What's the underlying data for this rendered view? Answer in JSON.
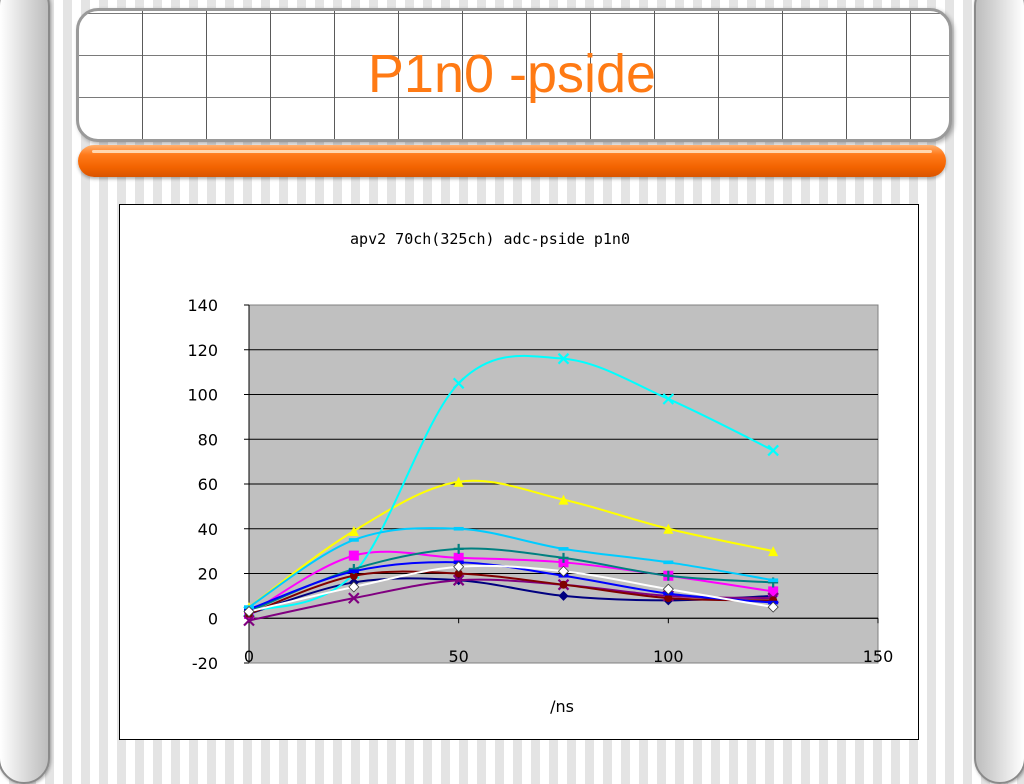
{
  "slide": {
    "title": "P1n0 -pside"
  },
  "colors": {
    "title": "#ff7a14",
    "plot_background": "#c0c0c0"
  },
  "chart_data": {
    "type": "line",
    "title": "apv2 70ch(325ch) adc-pside p1n0",
    "xlabel": "/ns",
    "ylabel": "",
    "xlim": [
      0,
      150
    ],
    "ylim": [
      -20,
      140
    ],
    "xticks": [
      0,
      50,
      100,
      150
    ],
    "yticks": [
      -20,
      0,
      20,
      40,
      60,
      80,
      100,
      120,
      140
    ],
    "grid": "horizontal",
    "smoothed": true,
    "legend": "none",
    "x": [
      0,
      25,
      50,
      75,
      100,
      125
    ],
    "series": [
      {
        "color": "#000080",
        "marker": "diamond",
        "values": [
          2,
          16,
          17,
          10,
          8,
          10
        ]
      },
      {
        "color": "#ff00ff",
        "marker": "square",
        "values": [
          2,
          28,
          27,
          25,
          19,
          12
        ]
      },
      {
        "color": "#ffff00",
        "marker": "triangle",
        "values": [
          5,
          39,
          61,
          53,
          40,
          30
        ]
      },
      {
        "color": "#00ffff",
        "marker": "x",
        "values": [
          3,
          20,
          105,
          116,
          98,
          75
        ]
      },
      {
        "color": "#800080",
        "marker": "x",
        "values": [
          -1,
          9,
          17,
          15,
          10,
          9
        ]
      },
      {
        "color": "#800000",
        "marker": "circle",
        "values": [
          2,
          19,
          20,
          15,
          9,
          8
        ]
      },
      {
        "color": "#008080",
        "marker": "plus",
        "values": [
          3,
          22,
          31,
          27,
          19,
          16
        ]
      },
      {
        "color": "#0000ff",
        "marker": "dash",
        "values": [
          4,
          21,
          25,
          19,
          11,
          7
        ]
      },
      {
        "color": "#00ccff",
        "marker": "dash",
        "values": [
          5,
          35,
          40,
          31,
          25,
          17
        ]
      },
      {
        "color": "#ffffff",
        "marker": "diamond",
        "values": [
          3,
          14,
          23,
          21,
          13,
          5
        ]
      }
    ]
  }
}
